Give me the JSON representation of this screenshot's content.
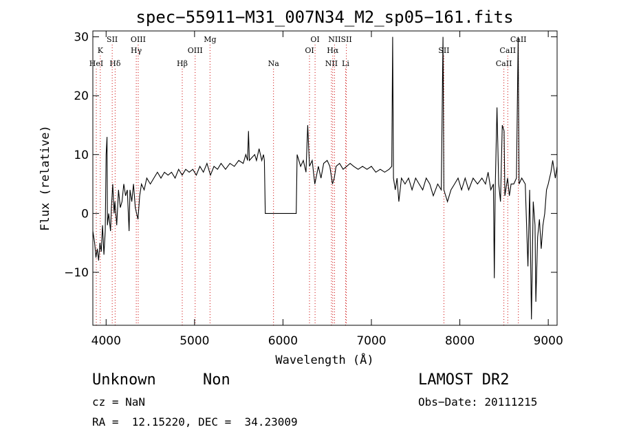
{
  "chart_data": {
    "type": "line",
    "title": "spec−55911−M31_007N34_M2_sp05−161.fits",
    "xlabel": "Wavelength (Å)",
    "ylabel": "Flux (relative)",
    "xlim": [
      3850,
      9100
    ],
    "ylim": [
      -19,
      31
    ],
    "xticks": [
      4000,
      5000,
      6000,
      7000,
      8000,
      9000
    ],
    "yticks": [
      30,
      20,
      10,
      0,
      -10
    ],
    "ytick_labels": [
      "30",
      "20",
      "10",
      "0",
      "−10"
    ],
    "grid": false,
    "line_color": "#000000",
    "marker_color": "#cc0000",
    "spectral_lines": [
      {
        "label": "HeI",
        "x": 3889,
        "row": 3
      },
      {
        "label": "K",
        "x": 3934,
        "row": 2
      },
      {
        "label": "SII",
        "x": 4069,
        "row": 1
      },
      {
        "label": "Hδ",
        "x": 4102,
        "row": 3
      },
      {
        "label": "OIII",
        "x": 4363,
        "row": 1
      },
      {
        "label": "Hγ",
        "x": 4341,
        "row": 2
      },
      {
        "label": "Hβ",
        "x": 4861,
        "row": 3
      },
      {
        "label": "OIII",
        "x": 5007,
        "row": 2
      },
      {
        "label": "Mg",
        "x": 5175,
        "row": 1
      },
      {
        "label": "Na",
        "x": 5893,
        "row": 3
      },
      {
        "label": "OI",
        "x": 6363,
        "row": 1
      },
      {
        "label": "OI",
        "x": 6300,
        "row": 2
      },
      {
        "label": "NII",
        "x": 6548,
        "row": 3
      },
      {
        "label": "NII",
        "x": 6583,
        "row": 1
      },
      {
        "label": "Hα",
        "x": 6563,
        "row": 2
      },
      {
        "label": "SII",
        "x": 6717,
        "row": 1
      },
      {
        "label": "Li",
        "x": 6708,
        "row": 3
      },
      {
        "label": "SII",
        "x": 7820,
        "row": 2
      },
      {
        "label": "CaII",
        "x": 8662,
        "row": 1
      },
      {
        "label": "CaII",
        "x": 8542,
        "row": 2
      },
      {
        "label": "CaII",
        "x": 8498,
        "row": 3
      }
    ],
    "series": [
      {
        "values": [
          [
            3850,
            -3
          ],
          [
            3870,
            -5
          ],
          [
            3885,
            -7.5
          ],
          [
            3900,
            -6
          ],
          [
            3915,
            -8
          ],
          [
            3930,
            -5
          ],
          [
            3945,
            -6.5
          ],
          [
            3960,
            -2
          ],
          [
            3975,
            -7
          ],
          [
            3990,
            -3
          ],
          [
            4000,
            10
          ],
          [
            4010,
            13
          ],
          [
            4015,
            -2
          ],
          [
            4030,
            0
          ],
          [
            4050,
            -3
          ],
          [
            4060,
            1
          ],
          [
            4075,
            5
          ],
          [
            4090,
            0
          ],
          [
            4100,
            2
          ],
          [
            4120,
            -2
          ],
          [
            4140,
            4
          ],
          [
            4160,
            1
          ],
          [
            4180,
            2
          ],
          [
            4200,
            5
          ],
          [
            4220,
            3
          ],
          [
            4240,
            4
          ],
          [
            4260,
            -3
          ],
          [
            4270,
            4
          ],
          [
            4290,
            2
          ],
          [
            4310,
            5
          ],
          [
            4330,
            1
          ],
          [
            4345,
            0
          ],
          [
            4360,
            -1
          ],
          [
            4380,
            3
          ],
          [
            4400,
            5
          ],
          [
            4430,
            4
          ],
          [
            4460,
            6
          ],
          [
            4500,
            5
          ],
          [
            4540,
            6
          ],
          [
            4580,
            7
          ],
          [
            4620,
            6
          ],
          [
            4660,
            7
          ],
          [
            4700,
            6.5
          ],
          [
            4740,
            7
          ],
          [
            4780,
            6
          ],
          [
            4820,
            7.5
          ],
          [
            4860,
            6.5
          ],
          [
            4900,
            7.5
          ],
          [
            4940,
            7
          ],
          [
            4980,
            7.5
          ],
          [
            5020,
            6.5
          ],
          [
            5060,
            8
          ],
          [
            5100,
            7
          ],
          [
            5140,
            8.5
          ],
          [
            5180,
            6.5
          ],
          [
            5220,
            8
          ],
          [
            5260,
            7.5
          ],
          [
            5300,
            8.5
          ],
          [
            5350,
            7.5
          ],
          [
            5400,
            8.5
          ],
          [
            5450,
            8
          ],
          [
            5500,
            9
          ],
          [
            5550,
            8.5
          ],
          [
            5580,
            10
          ],
          [
            5600,
            9
          ],
          [
            5610,
            14
          ],
          [
            5620,
            9
          ],
          [
            5650,
            9.5
          ],
          [
            5680,
            10
          ],
          [
            5700,
            9
          ],
          [
            5730,
            11
          ],
          [
            5760,
            9
          ],
          [
            5780,
            10
          ],
          [
            5790,
            9
          ],
          [
            5800,
            0
          ],
          [
            6150,
            0
          ],
          [
            6160,
            10
          ],
          [
            6200,
            8
          ],
          [
            6230,
            9
          ],
          [
            6260,
            7
          ],
          [
            6280,
            15
          ],
          [
            6300,
            8
          ],
          [
            6330,
            9
          ],
          [
            6360,
            5
          ],
          [
            6400,
            8
          ],
          [
            6430,
            6
          ],
          [
            6460,
            8.5
          ],
          [
            6500,
            9
          ],
          [
            6530,
            8
          ],
          [
            6560,
            5
          ],
          [
            6580,
            6
          ],
          [
            6600,
            8
          ],
          [
            6640,
            8.5
          ],
          [
            6680,
            7.5
          ],
          [
            6720,
            8
          ],
          [
            6760,
            8.5
          ],
          [
            6800,
            8
          ],
          [
            6850,
            7.5
          ],
          [
            6900,
            8
          ],
          [
            6950,
            7.5
          ],
          [
            7000,
            8
          ],
          [
            7050,
            7
          ],
          [
            7100,
            7.5
          ],
          [
            7150,
            7
          ],
          [
            7200,
            7.5
          ],
          [
            7230,
            8
          ],
          [
            7240,
            30
          ],
          [
            7250,
            6
          ],
          [
            7270,
            4
          ],
          [
            7290,
            6
          ],
          [
            7310,
            2
          ],
          [
            7340,
            6
          ],
          [
            7380,
            5
          ],
          [
            7420,
            6
          ],
          [
            7460,
            4
          ],
          [
            7500,
            6
          ],
          [
            7540,
            5
          ],
          [
            7580,
            4
          ],
          [
            7620,
            6
          ],
          [
            7660,
            5
          ],
          [
            7700,
            3
          ],
          [
            7750,
            5
          ],
          [
            7790,
            4
          ],
          [
            7810,
            30
          ],
          [
            7820,
            4
          ],
          [
            7860,
            2
          ],
          [
            7900,
            4
          ],
          [
            7940,
            5
          ],
          [
            7980,
            6
          ],
          [
            8020,
            4
          ],
          [
            8060,
            6
          ],
          [
            8100,
            4
          ],
          [
            8150,
            6
          ],
          [
            8200,
            5
          ],
          [
            8250,
            6
          ],
          [
            8290,
            5
          ],
          [
            8320,
            7
          ],
          [
            8350,
            4
          ],
          [
            8380,
            5
          ],
          [
            8390,
            -11
          ],
          [
            8400,
            4
          ],
          [
            8420,
            18
          ],
          [
            8440,
            5
          ],
          [
            8460,
            2
          ],
          [
            8480,
            15
          ],
          [
            8500,
            14
          ],
          [
            8510,
            3
          ],
          [
            8540,
            6
          ],
          [
            8560,
            3
          ],
          [
            8580,
            5
          ],
          [
            8610,
            5
          ],
          [
            8640,
            6
          ],
          [
            8660,
            30
          ],
          [
            8670,
            5
          ],
          [
            8700,
            6
          ],
          [
            8740,
            5
          ],
          [
            8770,
            -9
          ],
          [
            8790,
            4
          ],
          [
            8810,
            -18
          ],
          [
            8830,
            2
          ],
          [
            8850,
            -2
          ],
          [
            8860,
            -15
          ],
          [
            8880,
            -4
          ],
          [
            8900,
            -1
          ],
          [
            8920,
            -6
          ],
          [
            8940,
            -2
          ],
          [
            8960,
            0
          ],
          [
            8980,
            4
          ],
          [
            9000,
            5
          ],
          [
            9030,
            7
          ],
          [
            9050,
            9
          ],
          [
            9080,
            6
          ],
          [
            9100,
            8
          ]
        ]
      }
    ]
  },
  "footer": {
    "object_class": "Unknown",
    "subclass": "Non",
    "survey": "LAMOST DR2",
    "cz": "cz = NaN",
    "obs_date": "Obs−Date: 20111215",
    "coords": "RA =  12.15220, DEC =  34.23009"
  }
}
